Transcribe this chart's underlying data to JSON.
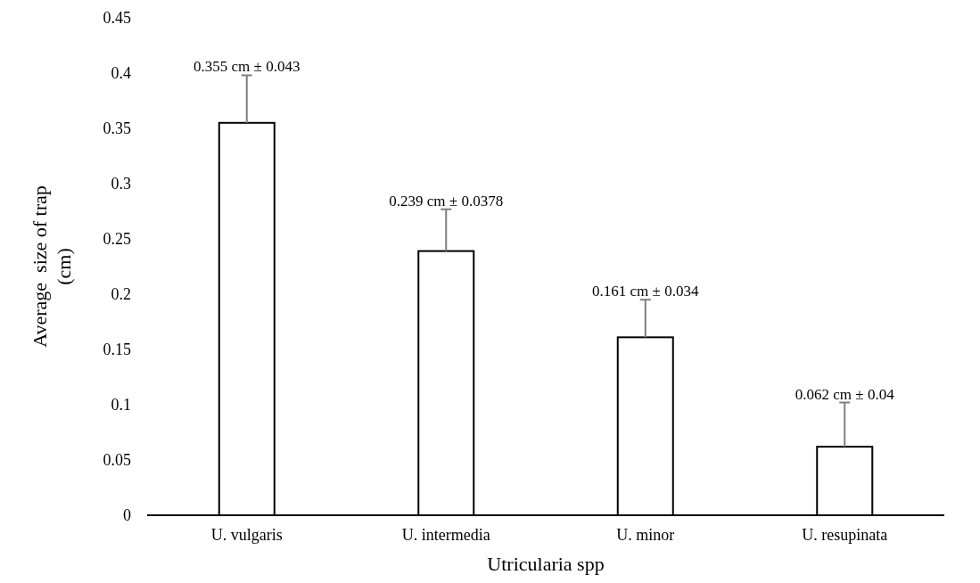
{
  "chart_data": {
    "type": "bar",
    "xlabel": "Utricularia spp",
    "ylabel": "Average  size of trap (cm)",
    "categories": [
      "U. vulgaris",
      "U. intermedia",
      "U. minor",
      "U. resupinata"
    ],
    "values": [
      0.355,
      0.239,
      0.161,
      0.062
    ],
    "errors": [
      [
        0.355,
        0.398
      ],
      [
        0.239,
        0.2768
      ],
      [
        0.161,
        0.195
      ],
      [
        0.062,
        0.102
      ]
    ],
    "value_labels": [
      "0.355 cm ± 0.043",
      "0.239 cm ± 0.0378",
      "0.161 cm ± 0.034",
      "0.062 cm ± 0.04"
    ],
    "color": "#ffffff",
    "ylim": [
      0,
      0.45
    ],
    "yticks": [
      0,
      0.05,
      0.1,
      0.15,
      0.2,
      0.25,
      0.3,
      0.35,
      0.4,
      0.45
    ],
    "grid": false
  }
}
